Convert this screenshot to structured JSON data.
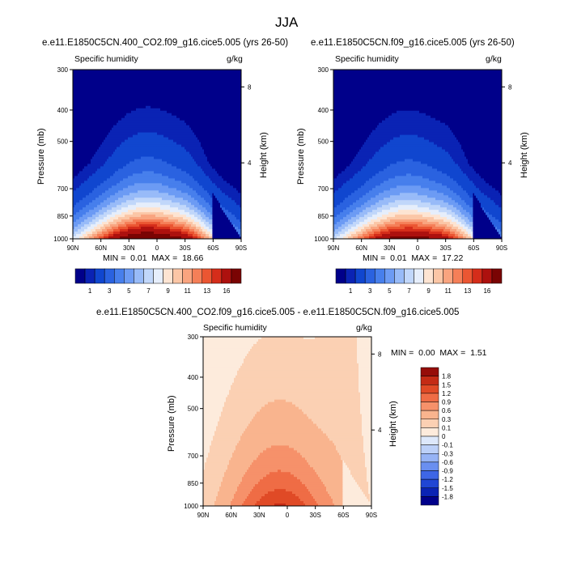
{
  "figure": {
    "season": "JJA"
  },
  "colors": {
    "abs_palette": [
      "#00008a",
      "#0a23b4",
      "#1046cf",
      "#2a62e0",
      "#477fec",
      "#6c9bf4",
      "#98bbf8",
      "#c1d7fa",
      "#e6eefb",
      "#fde4d2",
      "#fbc6a6",
      "#f9a47f",
      "#f57f58",
      "#eb5632",
      "#d52d1a",
      "#ad110e",
      "#7a0403"
    ],
    "diff_palette": [
      "#00008a",
      "#0a23b4",
      "#2046d4",
      "#3e66e6",
      "#6a8ff0",
      "#96b3f5",
      "#bcd0f8",
      "#dde8fb",
      "#fdebdc",
      "#fbd0b3",
      "#f9b48e",
      "#f6916a",
      "#ef6c45",
      "#e04a26",
      "#c42b15",
      "#960d09"
    ]
  },
  "chart_data": [
    {
      "id": "panel-case",
      "type": "contour",
      "title": "e.e11.E1850C5CN.400_CO2.f09_g16.cice5.005 (yrs 26-50)",
      "left_label": "Specific humidity",
      "right_label": "g/kg",
      "ylabel": "Pressure (mb)",
      "ylabel_right": "Height (km)",
      "x_ticks": [
        "90N",
        "60N",
        "30N",
        "0",
        "30S",
        "60S",
        "90S"
      ],
      "y_ticks": [
        "300",
        "400",
        "500",
        "700",
        "850",
        "1000"
      ],
      "y_ticks_right": [
        "8",
        "4"
      ],
      "xlim": [
        90,
        -90
      ],
      "ylim": [
        1000,
        300
      ],
      "min_label": "MIN =",
      "min": "0.01",
      "max_label": "MAX =",
      "max": "18.66",
      "levels": [
        1,
        3,
        5,
        7,
        9,
        11,
        13,
        16
      ],
      "colorbar_labels": [
        "1",
        "3",
        "5",
        "7",
        "9",
        "11",
        "13",
        "16"
      ],
      "peak": 18.66,
      "peak_lat": 10
    },
    {
      "id": "panel-control",
      "type": "contour",
      "title": "e.e11.E1850C5CN.f09_g16.cice5.005 (yrs 26-50)",
      "left_label": "Specific humidity",
      "right_label": "g/kg",
      "ylabel": "Pressure (mb)",
      "ylabel_right": "Height (km)",
      "x_ticks": [
        "90N",
        "60N",
        "30N",
        "0",
        "30S",
        "60S",
        "90S"
      ],
      "y_ticks": [
        "300",
        "400",
        "500",
        "700",
        "850",
        "1000"
      ],
      "y_ticks_right": [
        "8",
        "4"
      ],
      "xlim": [
        90,
        -90
      ],
      "ylim": [
        1000,
        300
      ],
      "min_label": "MIN =",
      "min": "0.01",
      "max_label": "MAX =",
      "max": "17.22",
      "levels": [
        1,
        3,
        5,
        7,
        9,
        11,
        13,
        16
      ],
      "colorbar_labels": [
        "1",
        "3",
        "5",
        "7",
        "9",
        "11",
        "13",
        "16"
      ],
      "peak": 17.22,
      "peak_lat": 10
    },
    {
      "id": "panel-diff",
      "type": "contour",
      "title": "e.e11.E1850C5CN.400_CO2.f09_g16.cice5.005 - e.e11.E1850C5CN.f09_g16.cice5.005",
      "left_label": "Specific humidity",
      "right_label": "g/kg",
      "ylabel": "Pressure (mb)",
      "ylabel_right": "Height (km)",
      "x_ticks": [
        "90N",
        "60N",
        "30N",
        "0",
        "30S",
        "60S",
        "90S"
      ],
      "y_ticks": [
        "300",
        "400",
        "500",
        "700",
        "850",
        "1000"
      ],
      "y_ticks_right": [
        "8",
        "4"
      ],
      "xlim": [
        90,
        -90
      ],
      "ylim": [
        1000,
        300
      ],
      "min_label": "MIN =",
      "min": "0.00",
      "max_label": "MAX =",
      "max": "1.51",
      "levels": [
        -1.8,
        -1.5,
        -1.2,
        -0.9,
        -0.6,
        -0.3,
        -0.1,
        0,
        0.1,
        0.3,
        0.6,
        0.9,
        1.2,
        1.5,
        1.8
      ],
      "colorbar_labels": [
        "1.8",
        "1.5",
        "1.2",
        "0.9",
        "0.6",
        "0.3",
        "0.1",
        "0",
        "-0.1",
        "-0.3",
        "-0.6",
        "-0.9",
        "-1.2",
        "-1.5",
        "-1.8"
      ],
      "peak": 1.51,
      "peak_lat": 10
    }
  ]
}
